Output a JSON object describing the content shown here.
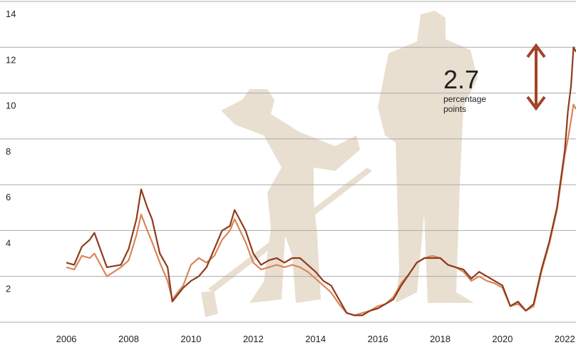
{
  "chart_data": {
    "type": "line",
    "x": [
      2006.0,
      2006.25,
      2006.5,
      2006.75,
      2006.9,
      2007.3,
      2007.75,
      2008.0,
      2008.25,
      2008.4,
      2008.6,
      2008.75,
      2009.0,
      2009.25,
      2009.4,
      2009.75,
      2010.0,
      2010.25,
      2010.5,
      2010.75,
      2011.0,
      2011.25,
      2011.4,
      2011.75,
      2012.0,
      2012.25,
      2012.5,
      2012.75,
      2013.0,
      2013.25,
      2013.5,
      2013.75,
      2014.0,
      2014.25,
      2014.5,
      2014.75,
      2015.0,
      2015.25,
      2015.5,
      2015.75,
      2016.0,
      2016.25,
      2016.5,
      2016.75,
      2017.0,
      2017.25,
      2017.5,
      2017.75,
      2018.0,
      2018.25,
      2018.5,
      2018.75,
      2019.0,
      2019.25,
      2019.5,
      2019.75,
      2020.0,
      2020.25,
      2020.5,
      2020.75,
      2021.0,
      2021.25,
      2021.5,
      2021.75,
      2022.0,
      2022.1,
      2022.2,
      2022.28,
      2022.36
    ],
    "series": [
      {
        "color": "#8e3b1d",
        "values": [
          2.6,
          2.5,
          3.3,
          3.6,
          3.9,
          2.4,
          2.5,
          3.2,
          4.5,
          5.8,
          5.0,
          4.5,
          3.0,
          2.4,
          0.9,
          1.5,
          1.8,
          2.0,
          2.4,
          3.2,
          4.0,
          4.2,
          4.9,
          4.0,
          3.0,
          2.5,
          2.7,
          2.8,
          2.6,
          2.8,
          2.8,
          2.5,
          2.2,
          1.8,
          1.6,
          1.0,
          0.4,
          0.3,
          0.3,
          0.5,
          0.6,
          0.8,
          1.0,
          1.6,
          2.1,
          2.6,
          2.8,
          2.8,
          2.8,
          2.5,
          2.4,
          2.3,
          1.9,
          2.2,
          2.0,
          1.8,
          1.6,
          0.7,
          0.9,
          0.5,
          0.8,
          2.3,
          3.5,
          5.0,
          7.5,
          9.2,
          10.3,
          12.0,
          11.8
        ]
      },
      {
        "color": "#d9865a",
        "values": [
          2.4,
          2.3,
          2.9,
          2.8,
          3.0,
          2.0,
          2.4,
          2.7,
          3.8,
          4.7,
          4.0,
          3.5,
          2.6,
          1.8,
          1.0,
          1.6,
          2.5,
          2.8,
          2.6,
          2.9,
          3.6,
          4.0,
          4.5,
          3.5,
          2.6,
          2.3,
          2.4,
          2.5,
          2.4,
          2.5,
          2.4,
          2.2,
          1.9,
          1.6,
          1.3,
          0.8,
          0.4,
          0.3,
          0.4,
          0.5,
          0.7,
          0.8,
          1.1,
          1.7,
          2.1,
          2.6,
          2.8,
          2.9,
          2.8,
          2.5,
          2.4,
          2.2,
          1.8,
          2.0,
          1.8,
          1.7,
          1.5,
          0.7,
          0.8,
          0.5,
          0.7,
          2.2,
          3.4,
          4.9,
          7.3,
          8.0,
          8.8,
          9.5,
          9.3
        ]
      }
    ],
    "xlim": [
      2003.87,
      2022.36
    ],
    "xticks": [
      2006,
      2008,
      2010,
      2012,
      2014,
      2016,
      2018,
      2020,
      2022
    ],
    "ylim": [
      0,
      14
    ],
    "yticks": [
      2,
      4,
      6,
      8,
      10,
      12,
      14
    ],
    "grid": true,
    "annotation": {
      "value": 2.7,
      "text": "percentage points"
    }
  }
}
